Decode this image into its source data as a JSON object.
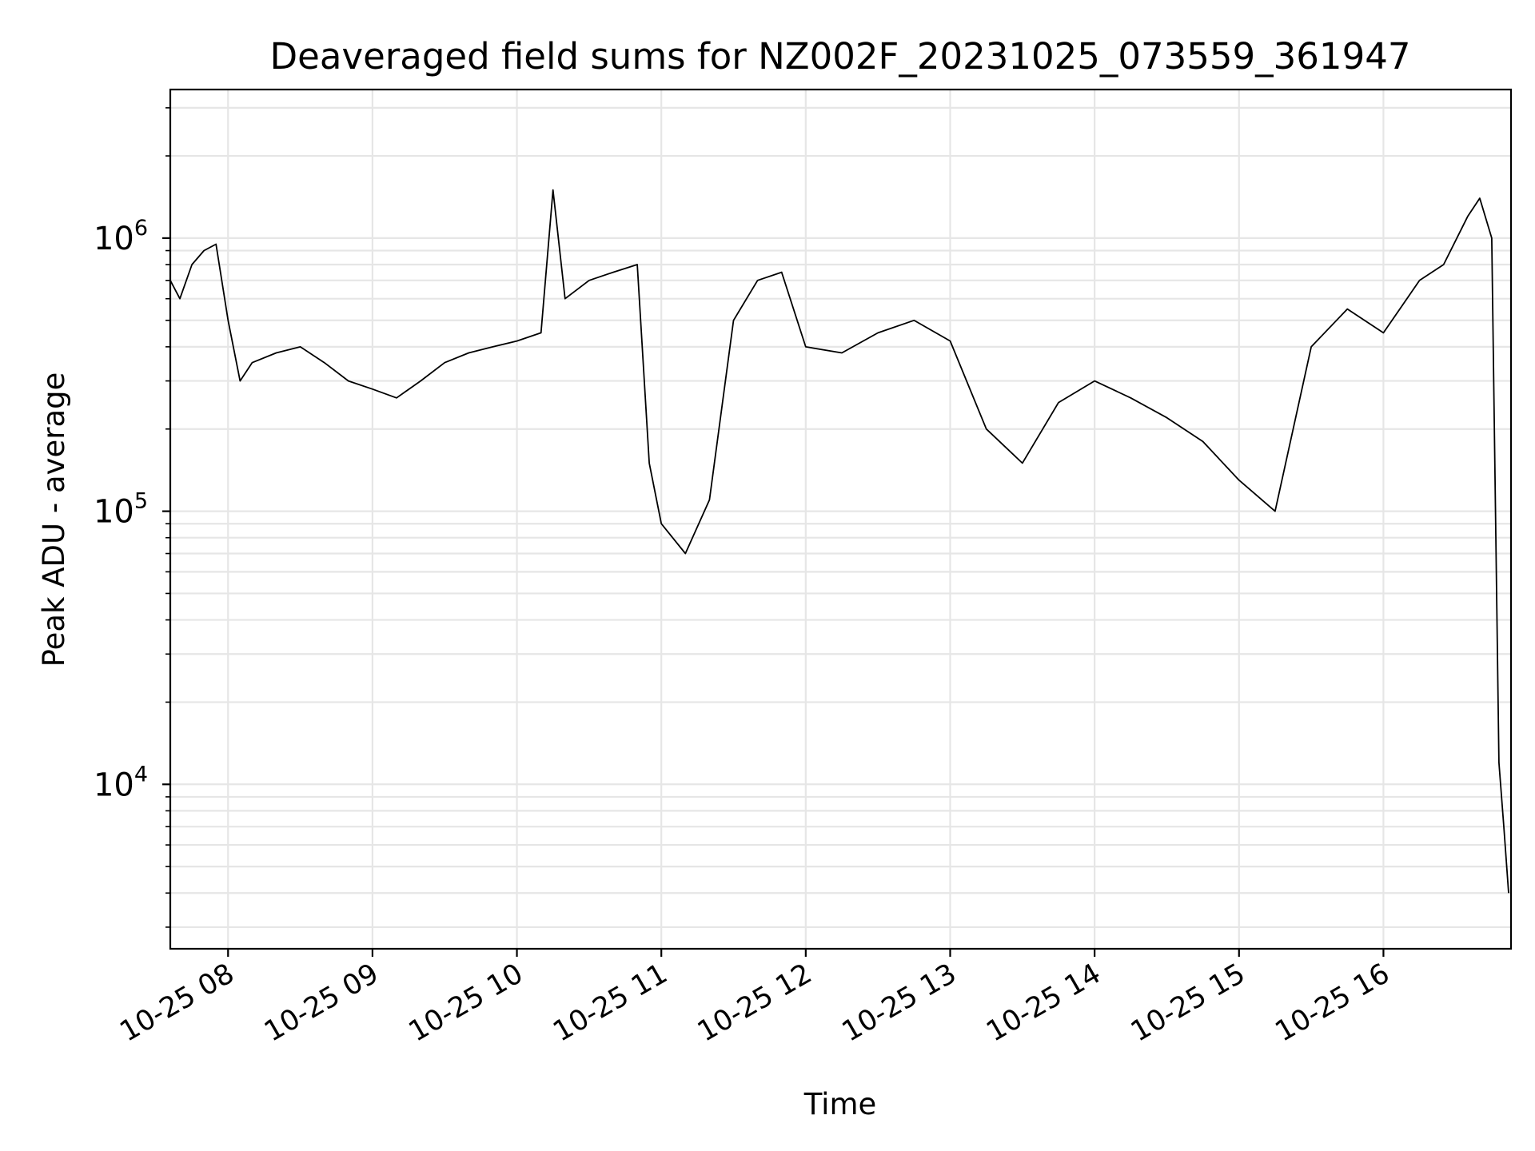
{
  "chart_data": {
    "type": "line",
    "title": "Deaveraged field sums for NZ002F_20231025_073559_361947",
    "xlabel": "Time",
    "ylabel": "Peak ADU - average",
    "yscale": "log",
    "ylim": [
      2500,
      3500000
    ],
    "xlim": [
      "2023-10-25 07:36",
      "2023-10-25 16:53"
    ],
    "grid": true,
    "line_color": "#000000",
    "grid_color": "#e6e6e6",
    "x_ticks": [
      {
        "time": "2023-10-25 08:00",
        "label": "10-25 08"
      },
      {
        "time": "2023-10-25 09:00",
        "label": "10-25 09"
      },
      {
        "time": "2023-10-25 10:00",
        "label": "10-25 10"
      },
      {
        "time": "2023-10-25 11:00",
        "label": "10-25 11"
      },
      {
        "time": "2023-10-25 12:00",
        "label": "10-25 12"
      },
      {
        "time": "2023-10-25 13:00",
        "label": "10-25 13"
      },
      {
        "time": "2023-10-25 14:00",
        "label": "10-25 14"
      },
      {
        "time": "2023-10-25 15:00",
        "label": "10-25 15"
      },
      {
        "time": "2023-10-25 16:00",
        "label": "10-25 16"
      }
    ],
    "y_ticks": [
      {
        "value": 10000,
        "base": "10",
        "exp": "4"
      },
      {
        "value": 100000,
        "base": "10",
        "exp": "5"
      },
      {
        "value": 1000000,
        "base": "10",
        "exp": "6"
      }
    ],
    "series": [
      {
        "x": [
          "2023-10-25 07:36",
          "2023-10-25 07:40",
          "2023-10-25 07:45",
          "2023-10-25 07:50",
          "2023-10-25 07:55",
          "2023-10-25 08:00",
          "2023-10-25 08:05",
          "2023-10-25 08:10",
          "2023-10-25 08:20",
          "2023-10-25 08:30",
          "2023-10-25 08:40",
          "2023-10-25 08:50",
          "2023-10-25 09:00",
          "2023-10-25 09:10",
          "2023-10-25 09:20",
          "2023-10-25 09:30",
          "2023-10-25 09:40",
          "2023-10-25 09:50",
          "2023-10-25 10:00",
          "2023-10-25 10:10",
          "2023-10-25 10:15",
          "2023-10-25 10:20",
          "2023-10-25 10:30",
          "2023-10-25 10:40",
          "2023-10-25 10:50",
          "2023-10-25 10:55",
          "2023-10-25 11:00",
          "2023-10-25 11:10",
          "2023-10-25 11:20",
          "2023-10-25 11:30",
          "2023-10-25 11:40",
          "2023-10-25 11:50",
          "2023-10-25 12:00",
          "2023-10-25 12:15",
          "2023-10-25 12:30",
          "2023-10-25 12:45",
          "2023-10-25 13:00",
          "2023-10-25 13:15",
          "2023-10-25 13:30",
          "2023-10-25 13:45",
          "2023-10-25 14:00",
          "2023-10-25 14:15",
          "2023-10-25 14:30",
          "2023-10-25 14:45",
          "2023-10-25 15:00",
          "2023-10-25 15:15",
          "2023-10-25 15:30",
          "2023-10-25 15:45",
          "2023-10-25 16:00",
          "2023-10-25 16:15",
          "2023-10-25 16:25",
          "2023-10-25 16:35",
          "2023-10-25 16:40",
          "2023-10-25 16:45",
          "2023-10-25 16:48",
          "2023-10-25 16:50",
          "2023-10-25 16:52"
        ],
        "y": [
          700000,
          600000,
          800000,
          900000,
          950000,
          500000,
          300000,
          350000,
          380000,
          400000,
          350000,
          300000,
          280000,
          260000,
          300000,
          350000,
          380000,
          400000,
          420000,
          450000,
          1500000,
          600000,
          700000,
          750000,
          800000,
          150000,
          90000,
          70000,
          110000,
          500000,
          700000,
          750000,
          400000,
          380000,
          450000,
          500000,
          420000,
          200000,
          150000,
          250000,
          300000,
          260000,
          220000,
          180000,
          130000,
          100000,
          400000,
          550000,
          450000,
          700000,
          800000,
          1200000,
          1400000,
          1000000,
          12000,
          7000,
          4000
        ]
      }
    ]
  }
}
